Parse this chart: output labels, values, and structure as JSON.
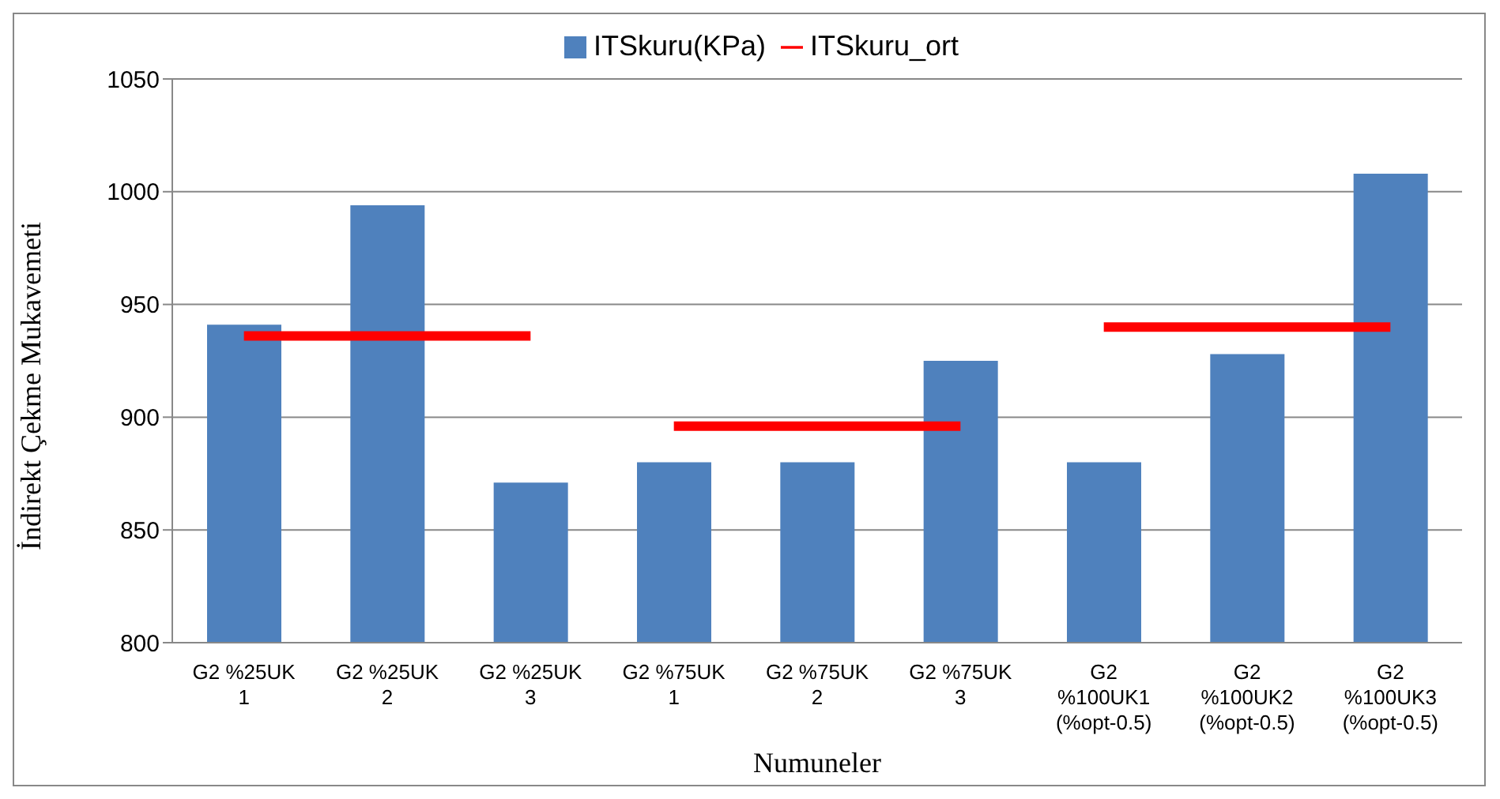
{
  "chart_data": {
    "type": "bar",
    "xlabel": "Numuneler",
    "ylabel": "İndirekt Çekme Mukavemeti",
    "categories": [
      "G2 %25UK 1",
      "G2 %25UK 2",
      "G2 %25UK 3",
      "G2 %75UK 1",
      "G2 %75UK 2",
      "G2 %75UK 3",
      "G2 %100UK1 (%opt-0.5)",
      "G2 %100UK2 (%opt-0.5)",
      "G2 %100UK3 (%opt-0.5)"
    ],
    "series": [
      {
        "name": "ITSkuru(KPa)",
        "color": "#4f81bd",
        "values": [
          941,
          994,
          871,
          880,
          880,
          925,
          880,
          928,
          1008
        ]
      },
      {
        "name": "ITSkuru_ort",
        "type": "line",
        "color": "#ff0000",
        "values": [
          936,
          936,
          936,
          null,
          null,
          null,
          null,
          null,
          null
        ]
      },
      {
        "type": "line",
        "color": "#ff0000",
        "values": [
          null,
          null,
          null,
          896,
          896,
          896,
          null,
          null,
          null
        ]
      },
      {
        "type": "line",
        "color": "#ff0000",
        "values": [
          null,
          null,
          null,
          null,
          null,
          null,
          940,
          940,
          940
        ]
      }
    ],
    "ylim": [
      800,
      1050
    ],
    "yticks": [
      800,
      850,
      900,
      950,
      1000,
      1050
    ],
    "grid": "y",
    "legend": "top",
    "marker": "none",
    "line_style": "solid"
  }
}
